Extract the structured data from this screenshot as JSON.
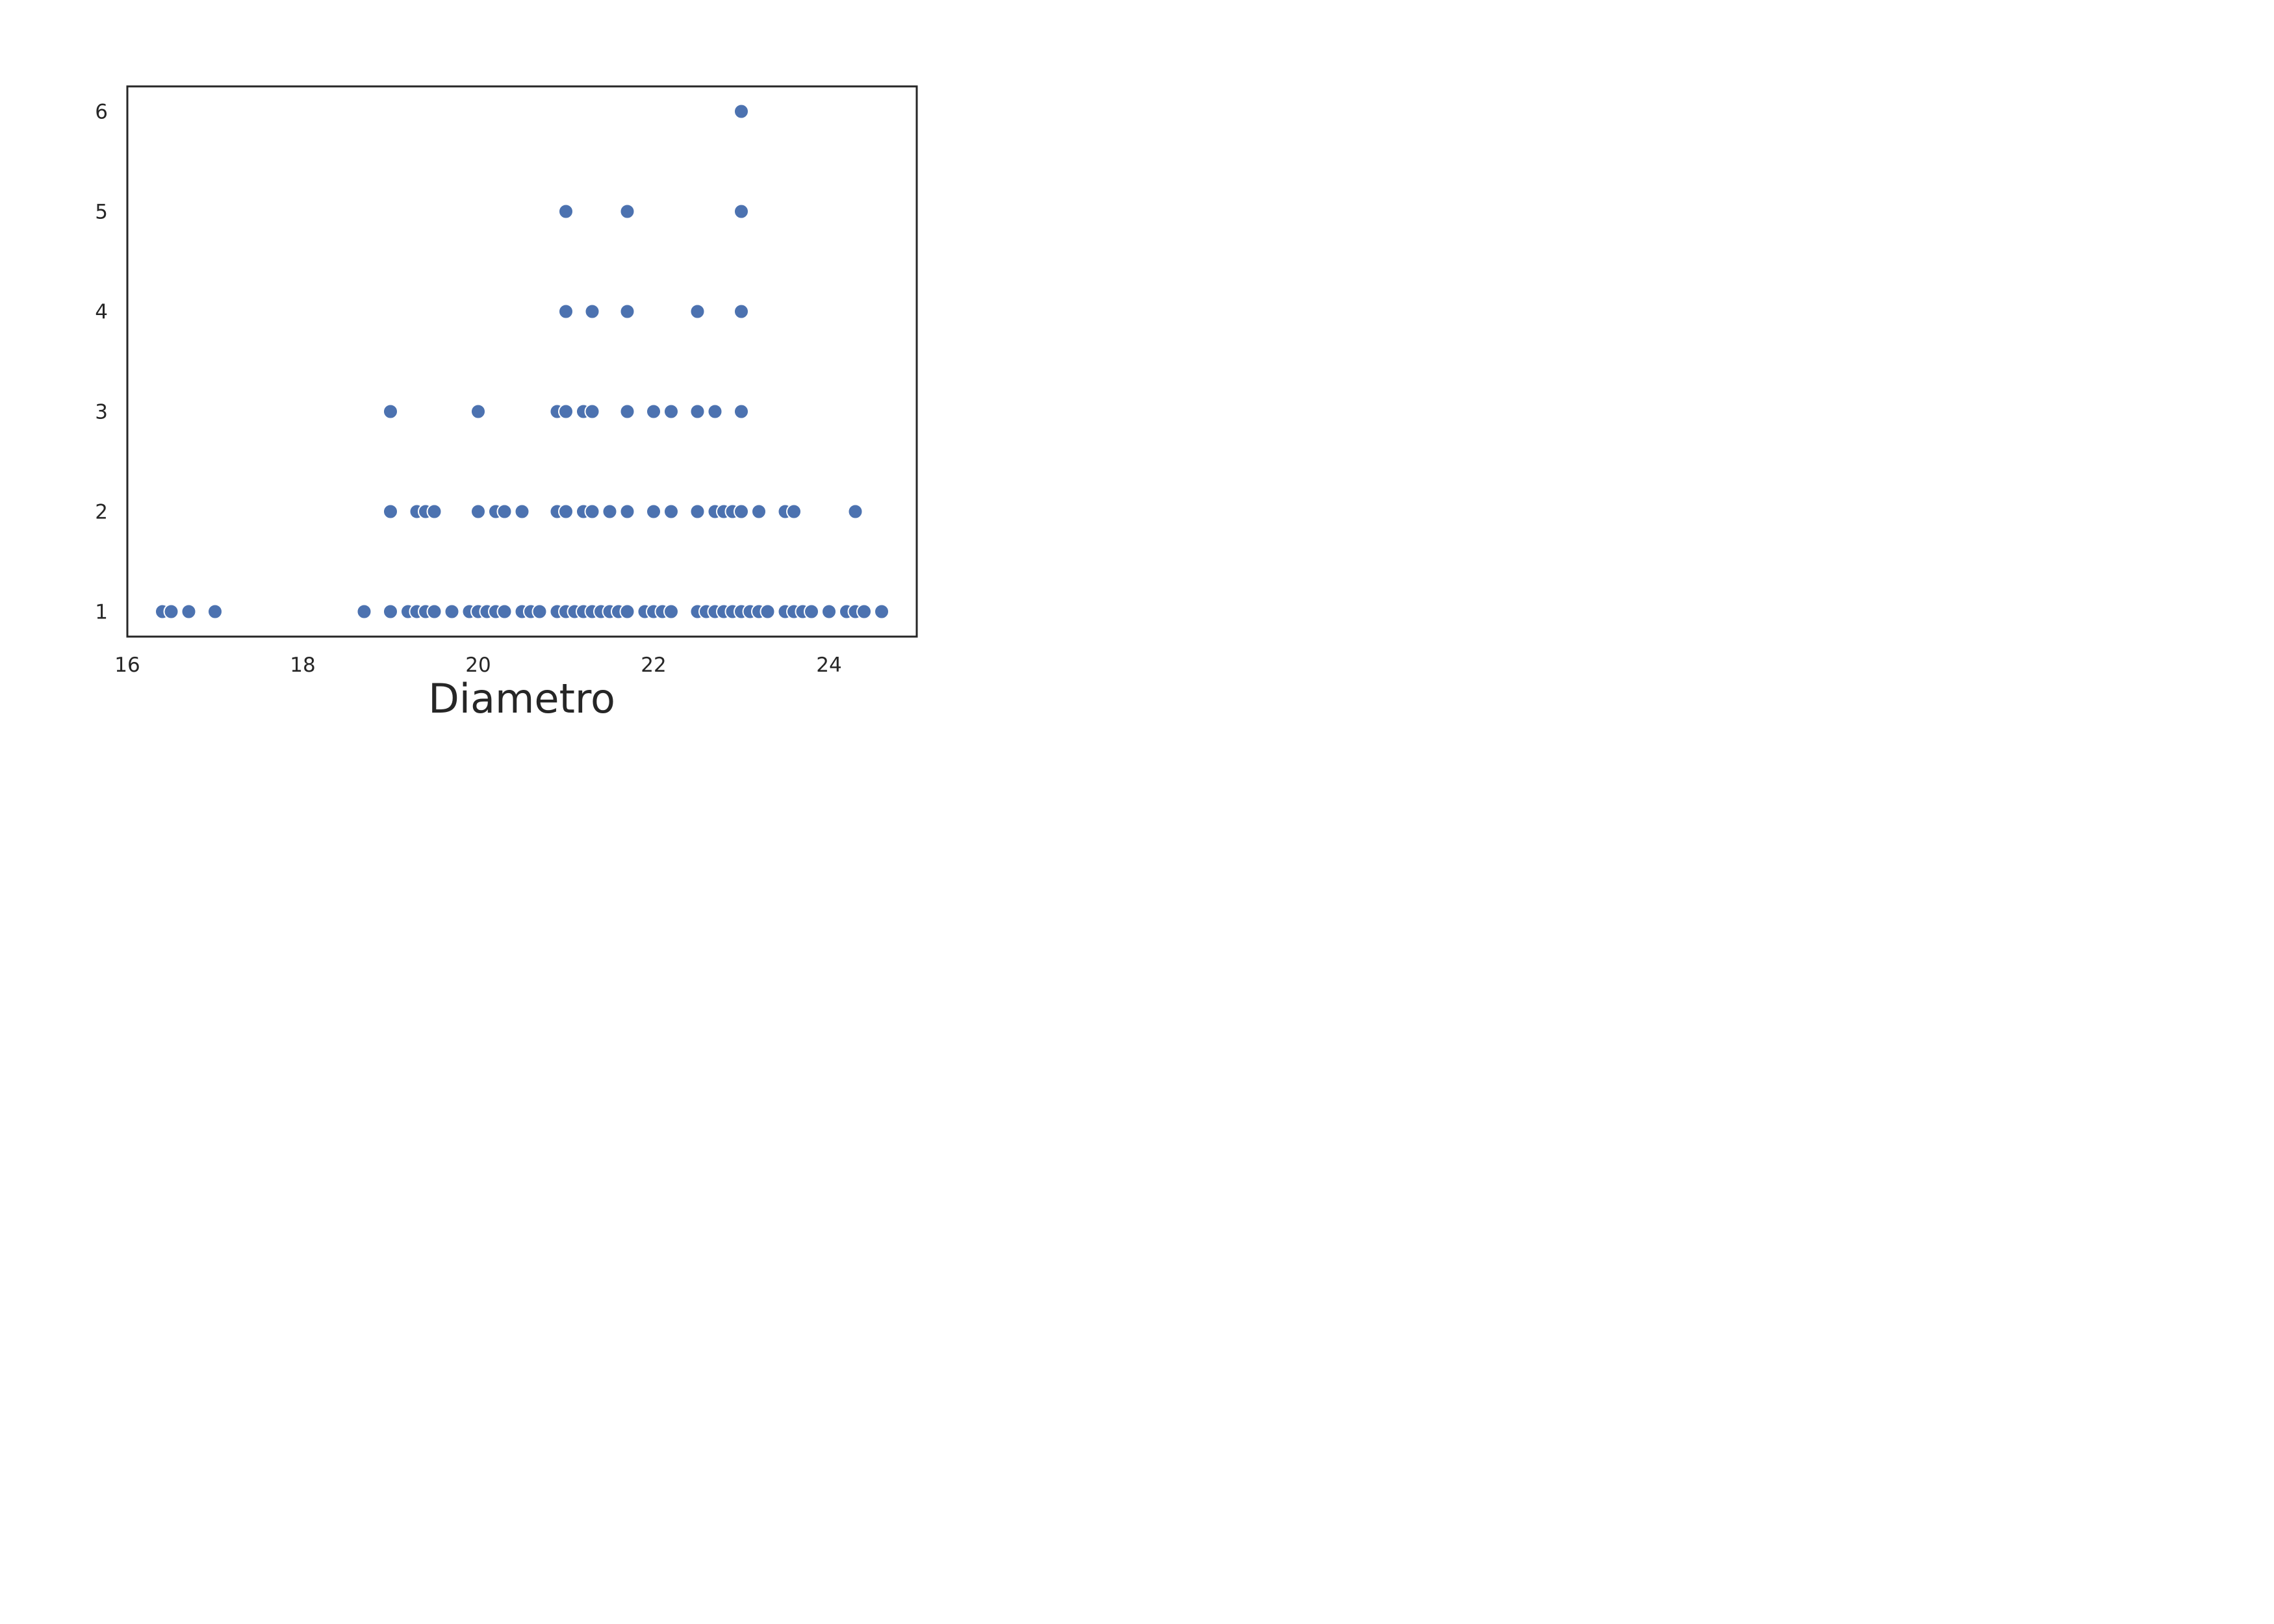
{
  "chart_data": {
    "type": "scatter",
    "title": "",
    "xlabel": "Diametro",
    "ylabel": "",
    "xlim": [
      16,
      25
    ],
    "ylim": [
      0.75,
      6.25
    ],
    "xticks": [
      16,
      18,
      20,
      22,
      24
    ],
    "xtick_labels": [
      "16",
      "18",
      "20",
      "22",
      "24"
    ],
    "yticks": [
      1,
      2,
      3,
      4,
      5,
      6
    ],
    "ytick_labels": [
      "1",
      "2",
      "3",
      "4",
      "5",
      "6"
    ],
    "grid": false,
    "legend": "none",
    "colors": {
      "marker": "#4c72b0",
      "marker_edge": "#ffffff",
      "frame": "#262626",
      "background": "#ffffff"
    },
    "series": [
      {
        "x": [
          16.4,
          16.5,
          16.7,
          17.0,
          18.7,
          19.0,
          19.2,
          19.3,
          19.4,
          19.5,
          19.7,
          19.9,
          20.0,
          20.1,
          20.2,
          20.3,
          20.5,
          20.6,
          20.7,
          20.9,
          21.0,
          21.1,
          21.2,
          21.3,
          21.4,
          21.5,
          21.6,
          21.7,
          21.9,
          22.0,
          22.1,
          22.2,
          22.5,
          22.6,
          22.7,
          22.8,
          22.9,
          23.0,
          23.1,
          23.2,
          23.3,
          23.5,
          23.6,
          23.7,
          23.8,
          24.0,
          24.2,
          24.3,
          24.4,
          24.6,
          19.0,
          19.3,
          19.4,
          19.5,
          20.0,
          20.2,
          20.3,
          20.5,
          20.9,
          21.0,
          21.2,
          21.3,
          21.5,
          21.7,
          22.0,
          22.2,
          22.5,
          22.7,
          22.8,
          22.9,
          23.0,
          23.2,
          23.5,
          23.6,
          24.3,
          19.0,
          20.0,
          20.9,
          21.0,
          21.2,
          21.3,
          21.7,
          22.0,
          22.2,
          22.5,
          22.7,
          23.0,
          21.0,
          21.3,
          21.7,
          22.5,
          23.0,
          21.0,
          21.7,
          23.0,
          23.0
        ],
        "y": [
          1,
          1,
          1,
          1,
          1,
          1,
          1,
          1,
          1,
          1,
          1,
          1,
          1,
          1,
          1,
          1,
          1,
          1,
          1,
          1,
          1,
          1,
          1,
          1,
          1,
          1,
          1,
          1,
          1,
          1,
          1,
          1,
          1,
          1,
          1,
          1,
          1,
          1,
          1,
          1,
          1,
          1,
          1,
          1,
          1,
          1,
          1,
          1,
          1,
          1,
          2,
          2,
          2,
          2,
          2,
          2,
          2,
          2,
          2,
          2,
          2,
          2,
          2,
          2,
          2,
          2,
          2,
          2,
          2,
          2,
          2,
          2,
          2,
          2,
          2,
          3,
          3,
          3,
          3,
          3,
          3,
          3,
          3,
          3,
          3,
          3,
          3,
          4,
          4,
          4,
          4,
          4,
          5,
          5,
          5,
          6
        ]
      }
    ]
  }
}
